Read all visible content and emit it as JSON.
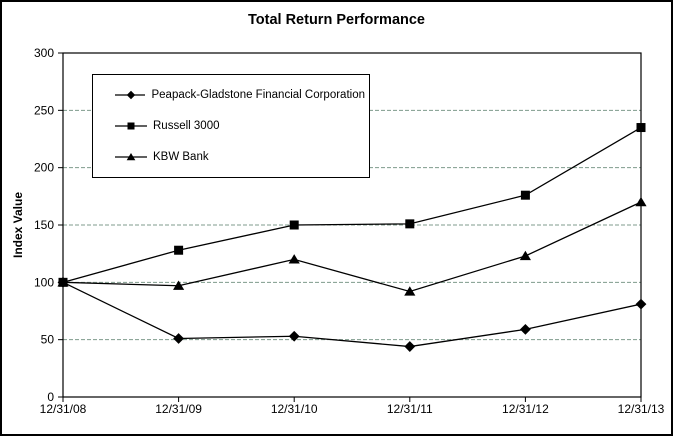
{
  "chart_data": {
    "type": "line",
    "title": "Total Return Performance",
    "ylabel": "Index Value",
    "xlabel": "",
    "ylim": [
      0,
      300
    ],
    "ytick_step": 50,
    "grid": "horizontal-dashed",
    "legend_position": "inside-top-left",
    "categories": [
      "12/31/08",
      "12/31/09",
      "12/31/10",
      "12/31/11",
      "12/31/12",
      "12/31/13"
    ],
    "series": [
      {
        "name": "Peapack-Gladstone Financial Corporation",
        "marker": "diamond",
        "values": [
          100,
          51,
          53,
          44,
          59,
          81
        ]
      },
      {
        "name": "Russell 3000",
        "marker": "square",
        "values": [
          100,
          128,
          150,
          151,
          176,
          235
        ]
      },
      {
        "name": "KBW Bank",
        "marker": "triangle",
        "values": [
          100,
          97,
          120,
          92,
          123,
          170
        ]
      }
    ],
    "yticks": [
      0,
      50,
      100,
      150,
      200,
      250,
      300
    ],
    "colors": {
      "series": "#000000",
      "gridline": "#7f9b8c",
      "background": "#ffffff",
      "border": "#000000"
    }
  }
}
